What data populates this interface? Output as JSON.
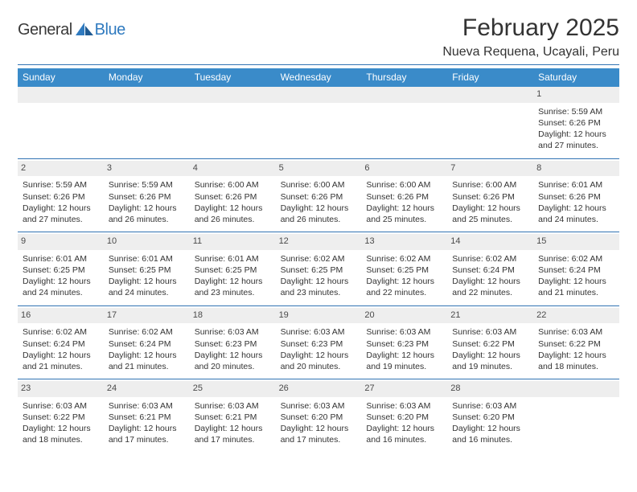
{
  "logo": {
    "word1": "General",
    "word2": "Blue"
  },
  "title": {
    "month": "February 2025",
    "location": "Nueva Requena, Ucayali, Peru"
  },
  "colors": {
    "header_bar": "#3a8bc9",
    "separator": "#3173b3",
    "daynum_bg": "#eeeeee",
    "text": "#333333",
    "logo_blue": "#2f7abf"
  },
  "weekdays": [
    "Sunday",
    "Monday",
    "Tuesday",
    "Wednesday",
    "Thursday",
    "Friday",
    "Saturday"
  ],
  "weeks": [
    [
      {
        "blank": true
      },
      {
        "blank": true
      },
      {
        "blank": true
      },
      {
        "blank": true
      },
      {
        "blank": true
      },
      {
        "blank": true
      },
      {
        "day": "1",
        "sunrise": "5:59 AM",
        "sunset": "6:26 PM",
        "daylight": "12 hours and 27 minutes."
      }
    ],
    [
      {
        "day": "2",
        "sunrise": "5:59 AM",
        "sunset": "6:26 PM",
        "daylight": "12 hours and 27 minutes."
      },
      {
        "day": "3",
        "sunrise": "5:59 AM",
        "sunset": "6:26 PM",
        "daylight": "12 hours and 26 minutes."
      },
      {
        "day": "4",
        "sunrise": "6:00 AM",
        "sunset": "6:26 PM",
        "daylight": "12 hours and 26 minutes."
      },
      {
        "day": "5",
        "sunrise": "6:00 AM",
        "sunset": "6:26 PM",
        "daylight": "12 hours and 26 minutes."
      },
      {
        "day": "6",
        "sunrise": "6:00 AM",
        "sunset": "6:26 PM",
        "daylight": "12 hours and 25 minutes."
      },
      {
        "day": "7",
        "sunrise": "6:00 AM",
        "sunset": "6:26 PM",
        "daylight": "12 hours and 25 minutes."
      },
      {
        "day": "8",
        "sunrise": "6:01 AM",
        "sunset": "6:26 PM",
        "daylight": "12 hours and 24 minutes."
      }
    ],
    [
      {
        "day": "9",
        "sunrise": "6:01 AM",
        "sunset": "6:25 PM",
        "daylight": "12 hours and 24 minutes."
      },
      {
        "day": "10",
        "sunrise": "6:01 AM",
        "sunset": "6:25 PM",
        "daylight": "12 hours and 24 minutes."
      },
      {
        "day": "11",
        "sunrise": "6:01 AM",
        "sunset": "6:25 PM",
        "daylight": "12 hours and 23 minutes."
      },
      {
        "day": "12",
        "sunrise": "6:02 AM",
        "sunset": "6:25 PM",
        "daylight": "12 hours and 23 minutes."
      },
      {
        "day": "13",
        "sunrise": "6:02 AM",
        "sunset": "6:25 PM",
        "daylight": "12 hours and 22 minutes."
      },
      {
        "day": "14",
        "sunrise": "6:02 AM",
        "sunset": "6:24 PM",
        "daylight": "12 hours and 22 minutes."
      },
      {
        "day": "15",
        "sunrise": "6:02 AM",
        "sunset": "6:24 PM",
        "daylight": "12 hours and 21 minutes."
      }
    ],
    [
      {
        "day": "16",
        "sunrise": "6:02 AM",
        "sunset": "6:24 PM",
        "daylight": "12 hours and 21 minutes."
      },
      {
        "day": "17",
        "sunrise": "6:02 AM",
        "sunset": "6:24 PM",
        "daylight": "12 hours and 21 minutes."
      },
      {
        "day": "18",
        "sunrise": "6:03 AM",
        "sunset": "6:23 PM",
        "daylight": "12 hours and 20 minutes."
      },
      {
        "day": "19",
        "sunrise": "6:03 AM",
        "sunset": "6:23 PM",
        "daylight": "12 hours and 20 minutes."
      },
      {
        "day": "20",
        "sunrise": "6:03 AM",
        "sunset": "6:23 PM",
        "daylight": "12 hours and 19 minutes."
      },
      {
        "day": "21",
        "sunrise": "6:03 AM",
        "sunset": "6:22 PM",
        "daylight": "12 hours and 19 minutes."
      },
      {
        "day": "22",
        "sunrise": "6:03 AM",
        "sunset": "6:22 PM",
        "daylight": "12 hours and 18 minutes."
      }
    ],
    [
      {
        "day": "23",
        "sunrise": "6:03 AM",
        "sunset": "6:22 PM",
        "daylight": "12 hours and 18 minutes."
      },
      {
        "day": "24",
        "sunrise": "6:03 AM",
        "sunset": "6:21 PM",
        "daylight": "12 hours and 17 minutes."
      },
      {
        "day": "25",
        "sunrise": "6:03 AM",
        "sunset": "6:21 PM",
        "daylight": "12 hours and 17 minutes."
      },
      {
        "day": "26",
        "sunrise": "6:03 AM",
        "sunset": "6:20 PM",
        "daylight": "12 hours and 17 minutes."
      },
      {
        "day": "27",
        "sunrise": "6:03 AM",
        "sunset": "6:20 PM",
        "daylight": "12 hours and 16 minutes."
      },
      {
        "day": "28",
        "sunrise": "6:03 AM",
        "sunset": "6:20 PM",
        "daylight": "12 hours and 16 minutes."
      },
      {
        "blank": true
      }
    ]
  ],
  "labels": {
    "sunrise_prefix": "Sunrise: ",
    "sunset_prefix": "Sunset: ",
    "daylight_prefix": "Daylight: "
  }
}
